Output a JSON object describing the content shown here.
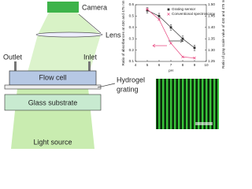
{
  "diagram": {
    "camera": "Camera",
    "lens": "Lens",
    "outlet": "Outlet",
    "inlet": "Inlet",
    "flow_cell": "Flow cell",
    "hydrogel_grating": [
      "Hydrogel",
      "grating"
    ],
    "glass_substrate": "Glass substrate",
    "light_source": "Light source"
  },
  "chart_data": {
    "type": "line",
    "x_label": "pH",
    "y_label": "Ratio of absorbances at 430 and 475 nm",
    "y2_label": "Ratio of gray scale value of 430 and 475 nm",
    "x": [
      5,
      6,
      7,
      8,
      9
    ],
    "xlim": [
      4,
      10
    ],
    "xticks": [
      4,
      5,
      6,
      7,
      8,
      9,
      10
    ],
    "ylim": [
      0.1,
      0.6
    ],
    "yticks": [
      0.1,
      0.2,
      0.3,
      0.4,
      0.5,
      0.6
    ],
    "y2lim": [
      1.25,
      1.5
    ],
    "y2ticks": [
      1.25,
      {
        "value": 1.3,
        "label": "1.30"
      },
      1.35,
      {
        "value": 1.4,
        "label": "1.40"
      },
      1.45,
      {
        "value": 1.5,
        "label": "1.50"
      }
    ],
    "legend": "top-right",
    "series": [
      {
        "name": "Grating sensor",
        "color": "#333333",
        "axis": "y2",
        "marker": "square",
        "values": [
          1.475,
          1.45,
          1.4,
          1.35,
          1.31
        ],
        "errors": [
          0.012,
          0.012,
          0.012,
          0.012,
          0.012
        ]
      },
      {
        "name": "Conventional spectroscopy",
        "color": "#e8457f",
        "marker": "x",
        "values": [
          0.56,
          0.47,
          0.26,
          0.14,
          0.13
        ]
      }
    ]
  }
}
